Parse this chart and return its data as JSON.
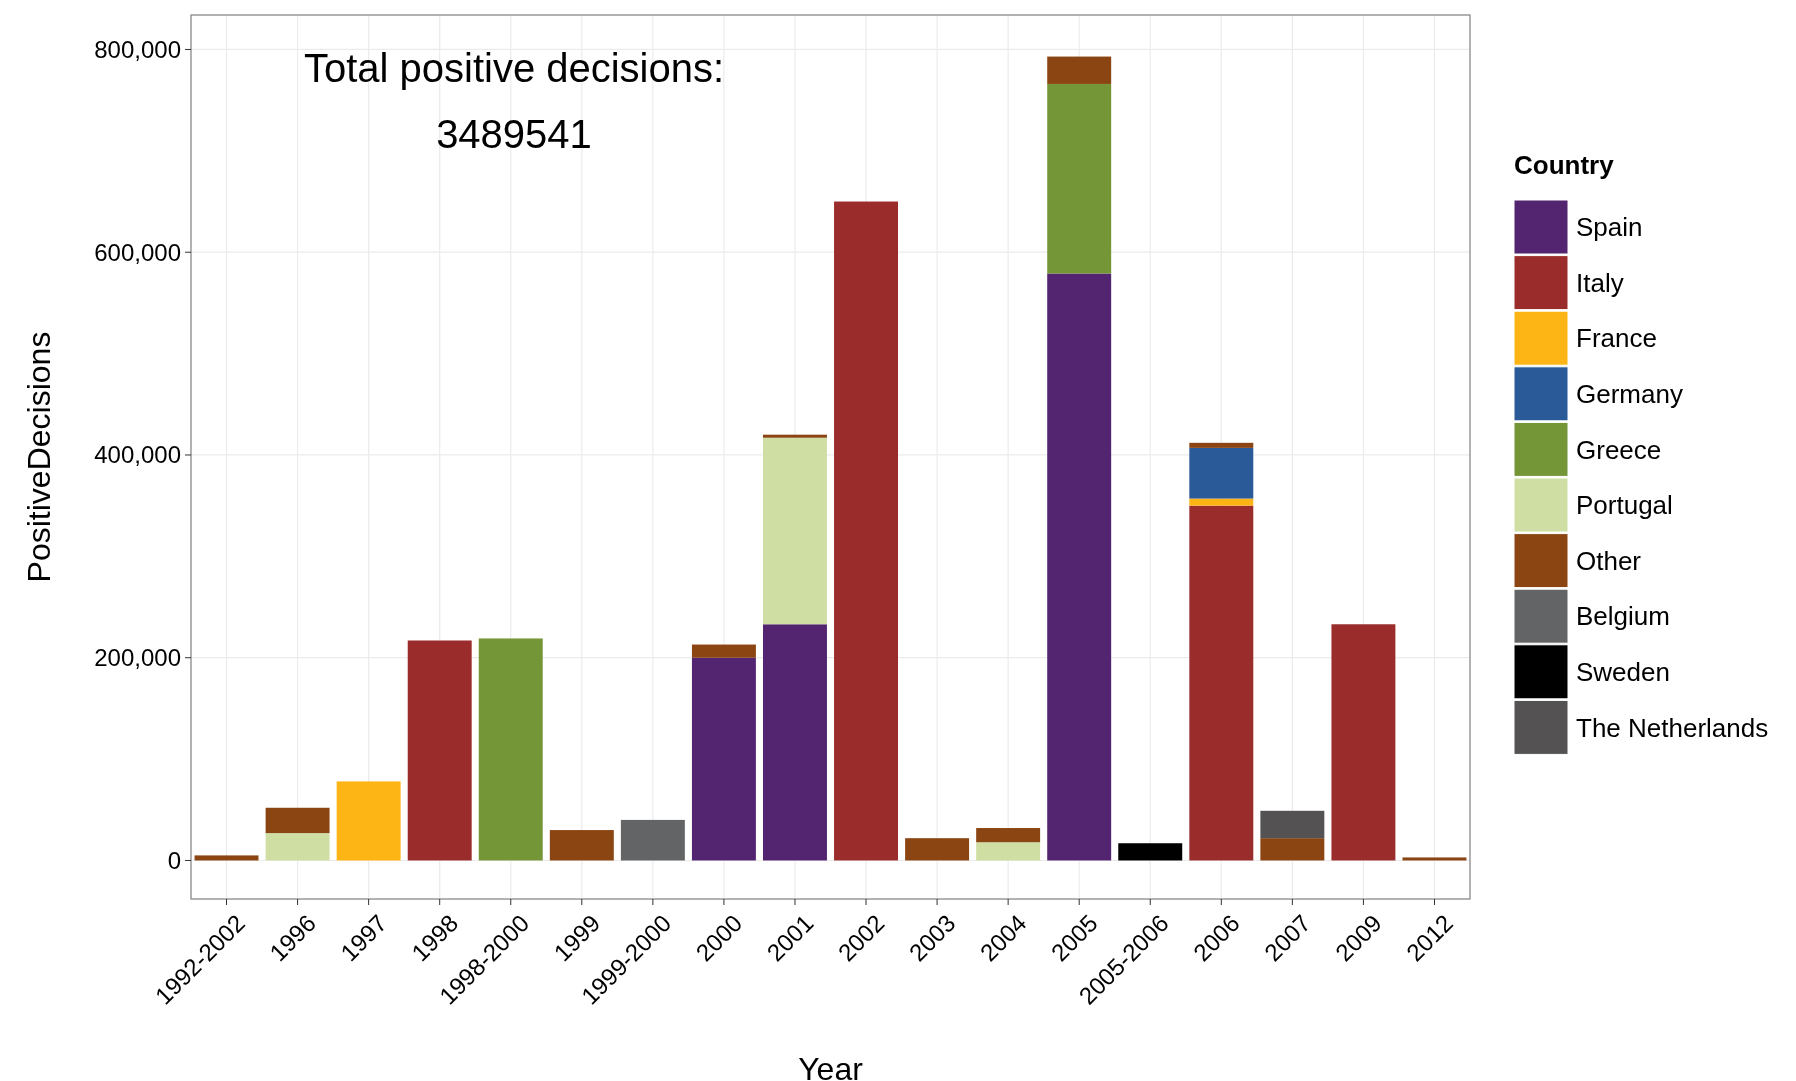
{
  "chart_data": {
    "type": "bar",
    "stacked": true,
    "xlabel": "Year",
    "ylabel": "PositiveDecisions",
    "legend_title": "Country",
    "legend": "right",
    "grid": true,
    "annotations": [
      "Total positive decisions:",
      "3489541"
    ],
    "categories": [
      "1992-2002",
      "1996",
      "1997",
      "1998",
      "1998-2000",
      "1999",
      "1999-2000",
      "2000",
      "2001",
      "2002",
      "2003",
      "2004",
      "2005",
      "2005-2006",
      "2006",
      "2007",
      "2009",
      "2012"
    ],
    "ylim": [
      -38000,
      834000
    ],
    "yticks": [
      {
        "value": 0,
        "label": "0"
      },
      {
        "value": 200000,
        "label": "200,000"
      },
      {
        "value": 400000,
        "label": "400,000"
      },
      {
        "value": 600000,
        "label": "600,000"
      },
      {
        "value": 800000,
        "label": "800,000"
      }
    ],
    "series": [
      {
        "name": "Spain",
        "color": "#532470",
        "values": [
          null,
          null,
          null,
          null,
          null,
          null,
          null,
          200000,
          233000,
          null,
          null,
          null,
          579000,
          null,
          null,
          null,
          null,
          null
        ]
      },
      {
        "name": "Italy",
        "color": "#9b2c2c",
        "values": [
          null,
          null,
          null,
          217000,
          null,
          null,
          null,
          null,
          null,
          650000,
          null,
          null,
          null,
          null,
          350000,
          null,
          233000,
          null
        ]
      },
      {
        "name": "France",
        "color": "#fdb515",
        "values": [
          null,
          null,
          78000,
          null,
          null,
          null,
          null,
          null,
          null,
          null,
          null,
          null,
          null,
          null,
          7000,
          null,
          null,
          null
        ]
      },
      {
        "name": "Germany",
        "color": "#2a5a98",
        "values": [
          null,
          null,
          null,
          null,
          null,
          null,
          null,
          null,
          null,
          null,
          null,
          null,
          null,
          null,
          50000,
          null,
          null,
          null
        ]
      },
      {
        "name": "Greece",
        "color": "#759637",
        "values": [
          null,
          null,
          null,
          null,
          219000,
          null,
          null,
          null,
          null,
          null,
          null,
          null,
          187000,
          null,
          null,
          null,
          null,
          null
        ]
      },
      {
        "name": "Portugal",
        "color": "#cfdfa4",
        "values": [
          null,
          27000,
          null,
          null,
          null,
          null,
          null,
          null,
          184000,
          null,
          null,
          18000,
          null,
          null,
          null,
          null,
          null,
          null
        ]
      },
      {
        "name": "Other",
        "color": "#8b4513",
        "values": [
          5000,
          25000,
          null,
          null,
          null,
          30000,
          null,
          13000,
          3000,
          null,
          22000,
          14000,
          27000,
          null,
          5000,
          22000,
          null,
          3000
        ]
      },
      {
        "name": "Belgium",
        "color": "#636466",
        "values": [
          null,
          null,
          null,
          null,
          null,
          null,
          40000,
          null,
          null,
          null,
          null,
          null,
          null,
          null,
          null,
          null,
          null,
          null
        ]
      },
      {
        "name": "Sweden",
        "color": "#000000",
        "values": [
          null,
          null,
          null,
          null,
          null,
          null,
          null,
          null,
          null,
          null,
          null,
          null,
          null,
          17000,
          null,
          null,
          null,
          null
        ]
      },
      {
        "name": "The Netherlands",
        "color": "#545252",
        "values": [
          null,
          null,
          null,
          null,
          null,
          null,
          null,
          null,
          null,
          null,
          null,
          null,
          null,
          null,
          null,
          27000,
          null,
          null
        ]
      }
    ]
  }
}
